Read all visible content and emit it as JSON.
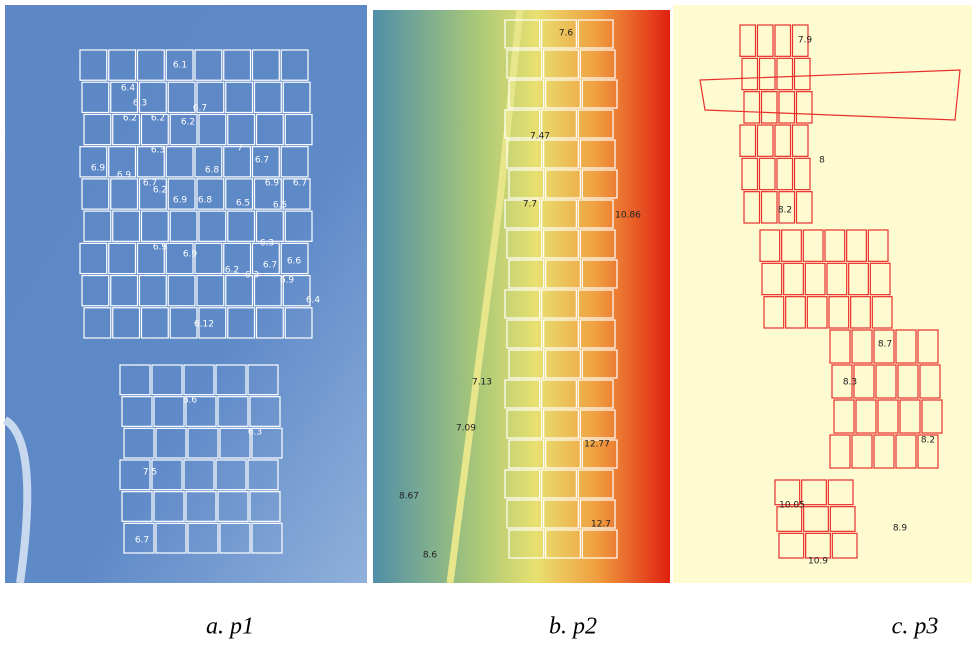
{
  "panels": [
    {
      "caption": "a. p1",
      "labels": [
        "6.1",
        "6.4",
        "6.3",
        "6.7",
        "6.2",
        "6.2",
        "6.2",
        "6.3",
        "6.9",
        "6.9",
        "7",
        "6.7",
        "6.8",
        "6.7",
        "6.2",
        "6.9",
        "6.7",
        "6.9",
        "6.8",
        "6.5",
        "6.5",
        "6.9",
        "6.9",
        "6.3",
        "6.7",
        "6.3",
        "6.6",
        "6.2",
        "6.9",
        "6.4",
        "6.12",
        "6.6",
        "6.3",
        "7.5",
        "6.7"
      ]
    },
    {
      "caption": "b. p2",
      "labels": [
        "7.6",
        "7.47",
        "7.7",
        "10.86",
        "7.13",
        "7.09",
        "12.77",
        "8.67",
        "12.7",
        "8.6"
      ]
    },
    {
      "caption": "c. p3",
      "labels": [
        "7.9",
        "8",
        "8.2",
        "8.7",
        "8.3",
        "8.2",
        "10.05",
        "8.9",
        "10.9"
      ]
    }
  ]
}
